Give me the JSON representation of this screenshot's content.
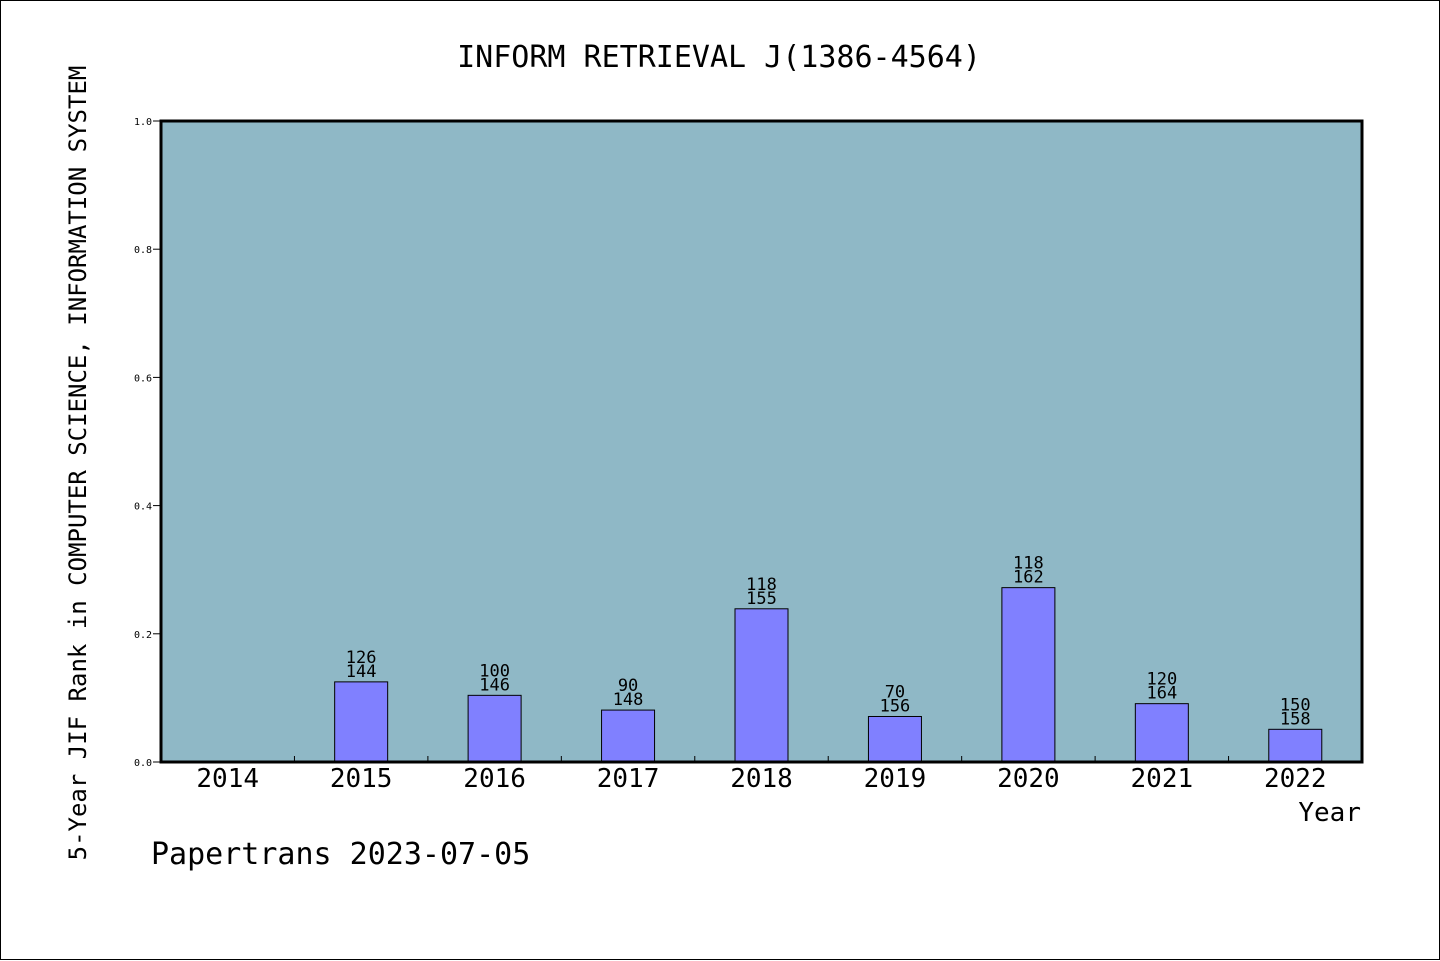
{
  "chart_data": {
    "type": "bar",
    "title": "INFORM RETRIEVAL J(1386-4564)",
    "xlabel": "Year",
    "ylabel": "5-Year JIF Rank in COMPUTER SCIENCE, INFORMATION SYSTEM",
    "ylim": [
      0,
      1.0
    ],
    "yticks": [
      "0.0",
      "0.2",
      "0.4",
      "0.6",
      "0.8",
      "1.0"
    ],
    "ytick_values": [
      0,
      0.2,
      0.4,
      0.6,
      0.8,
      1.0
    ],
    "categories": [
      "2014",
      "2015",
      "2016",
      "2017",
      "2018",
      "2019",
      "2020",
      "2021",
      "2022"
    ],
    "values": [
      null,
      0.125,
      0.104,
      0.081,
      0.239,
      0.071,
      0.272,
      0.091,
      0.051
    ],
    "labels_top": [
      "",
      "126",
      "100",
      "90",
      "118",
      "70",
      "118",
      "120",
      "150"
    ],
    "labels_bottom": [
      "",
      "144",
      "146",
      "148",
      "155",
      "156",
      "162",
      "164",
      "158"
    ],
    "grid": false,
    "colors": {
      "plot_background": "#8fb8c6",
      "bar_fill": "#8080ff",
      "axis": "#000000"
    }
  },
  "footer": {
    "credit": "Papertrans 2023-07-05"
  }
}
